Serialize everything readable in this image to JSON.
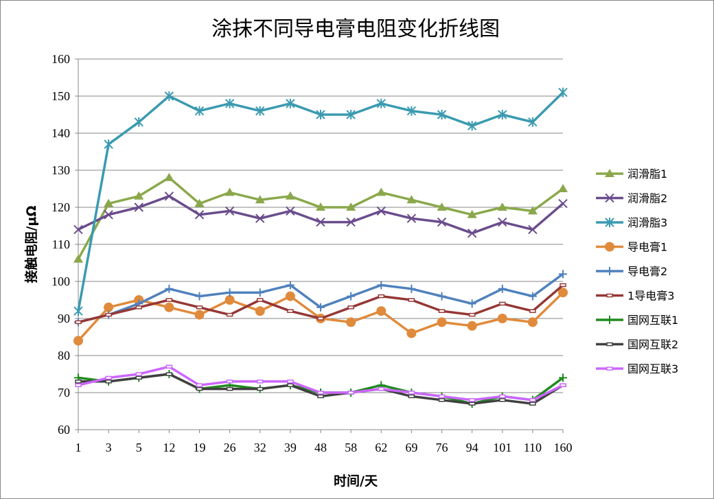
{
  "chart_data": {
    "type": "line",
    "title": "涂抹不同导电膏电阻变化折线图",
    "xlabel": "时间/天",
    "ylabel": "接触电阻/μΩ",
    "ylim": [
      60,
      160
    ],
    "yticks": [
      "60",
      "70",
      "80",
      "90",
      "100",
      "110",
      "120",
      "130",
      "140",
      "150",
      "160"
    ],
    "categories": [
      "1",
      "3",
      "5",
      "12",
      "19",
      "26",
      "32",
      "39",
      "48",
      "58",
      "62",
      "69",
      "76",
      "94",
      "101",
      "110",
      "160"
    ],
    "grid": "horizontal",
    "legend_position": "right",
    "series": [
      {
        "name": "润滑脂1",
        "color": "#8AA84B",
        "marker": "triangle",
        "values": [
          106,
          121,
          123,
          128,
          121,
          124,
          122,
          123,
          120,
          120,
          124,
          122,
          120,
          118,
          120,
          119,
          125
        ]
      },
      {
        "name": "润滑脂2",
        "color": "#6A4C8C",
        "marker": "x",
        "values": [
          114,
          118,
          120,
          123,
          118,
          119,
          117,
          119,
          116,
          116,
          119,
          117,
          116,
          113,
          116,
          114,
          121
        ]
      },
      {
        "name": "润滑脂3",
        "color": "#3A9AB0",
        "marker": "star",
        "values": [
          92,
          137,
          143,
          150,
          146,
          148,
          146,
          148,
          145,
          145,
          148,
          146,
          145,
          142,
          145,
          143,
          151
        ]
      },
      {
        "name": "导电膏1",
        "legend_prefix": "",
        "color": "#E08A3C",
        "marker": "circle",
        "values": [
          84,
          93,
          95,
          93,
          91,
          95,
          92,
          96,
          90,
          89,
          92,
          86,
          89,
          88,
          90,
          89,
          97
        ]
      },
      {
        "name": "导电膏2",
        "legend_prefix": "",
        "color": "#4F81BD",
        "marker": "plus",
        "values": [
          89,
          91,
          94,
          98,
          96,
          97,
          97,
          99,
          93,
          96,
          99,
          98,
          96,
          94,
          98,
          96,
          102
        ]
      },
      {
        "name": "导电膏3",
        "legend_prefix": "1",
        "color": "#953735",
        "marker": "dash",
        "values": [
          89,
          91,
          93,
          95,
          93,
          91,
          95,
          92,
          90,
          93,
          96,
          95,
          92,
          91,
          94,
          92,
          99
        ]
      },
      {
        "name": "国网互联1",
        "color": "#1E8A1E",
        "marker": "plus",
        "values": [
          74,
          73,
          74,
          75,
          71,
          72,
          71,
          72,
          70,
          70,
          72,
          70,
          69,
          67,
          69,
          68,
          74
        ]
      },
      {
        "name": "国网互联2",
        "color": "#404040",
        "marker": "dash",
        "values": [
          73,
          73,
          74,
          75,
          71,
          71,
          71,
          72,
          69,
          70,
          71,
          69,
          68,
          67,
          68,
          67,
          72
        ]
      },
      {
        "name": "国网互联3",
        "color": "#CC66FF",
        "marker": "dash",
        "values": [
          72,
          74,
          75,
          77,
          72,
          73,
          73,
          73,
          70,
          70,
          71,
          70,
          69,
          68,
          69,
          68,
          72
        ]
      }
    ]
  }
}
